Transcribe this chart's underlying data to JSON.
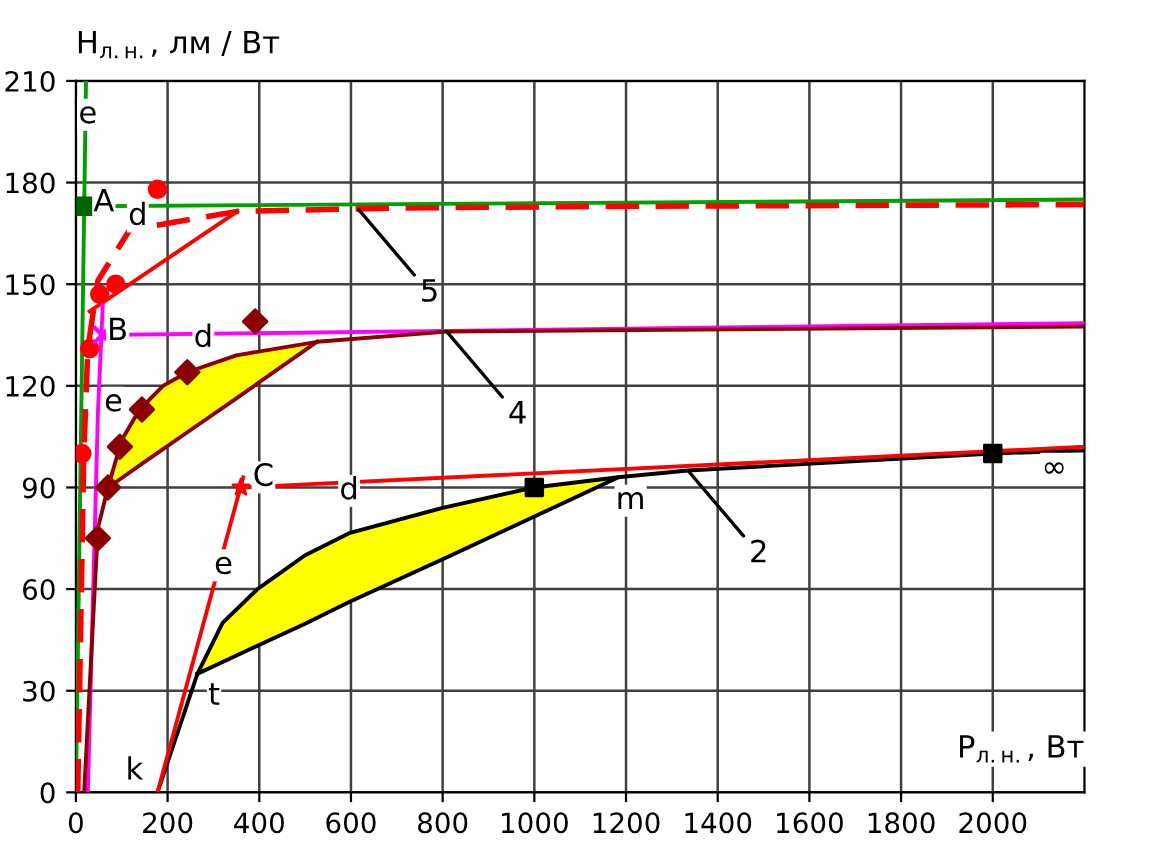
{
  "chart_data": {
    "type": "line",
    "xlabel": "P$_{л.н.}$, Вт",
    "ylabel": "H$_{л.н.}$, лм / Вт",
    "xlim": [
      0,
      2200
    ],
    "ylim": [
      0,
      210
    ],
    "xticks": [
      0,
      200,
      400,
      600,
      800,
      1000,
      1200,
      1400,
      1600,
      1800,
      2000
    ],
    "yticks": [
      0,
      30,
      60,
      90,
      120,
      150,
      180,
      210
    ],
    "grid": true,
    "legend": false,
    "series": [
      {
        "color": "#00a000",
        "x": [
          0,
          22
        ],
        "values": [
          0,
          210
        ],
        "line_style": "solid"
      },
      {
        "color": "#00a000",
        "x": [
          22,
          2200
        ],
        "values": [
          173,
          175
        ],
        "line_style": "solid"
      },
      {
        "color": "#ff0000",
        "x": [
          4,
          17,
          26,
          48,
          117,
          352,
          700,
          1200,
          2200
        ],
        "values": [
          0,
          99,
          131,
          151,
          166,
          171.5,
          172.5,
          173,
          173.5
        ],
        "line_style": "dashed"
      },
      {
        "color": "#ff0000",
        "x": [
          30,
          352
        ],
        "values": [
          142,
          171.5
        ],
        "line_style": "solid"
      },
      {
        "type": "scatter",
        "color": "#ff0000",
        "x": [
          13,
          30,
          52,
          87,
          178
        ],
        "values": [
          100,
          131,
          147,
          150,
          178
        ],
        "marker": "circle"
      },
      {
        "color": "#ff00ff",
        "x": [
          26,
          48,
          59
        ],
        "values": [
          0,
          112,
          145
        ],
        "line_style": "solid"
      },
      {
        "color": "#ff00ff",
        "x": [
          57,
          2200
        ],
        "values": [
          135,
          138.5
        ],
        "line_style": "solid"
      },
      {
        "color": "#8b0000",
        "x": [
          18,
          48,
          70,
          100,
          139,
          190,
          243,
          350,
          526,
          809,
          2200
        ],
        "values": [
          0,
          78,
          90,
          104,
          113,
          120,
          124,
          129,
          133,
          136,
          137.5
        ],
        "line_style": "solid"
      },
      {
        "color": "#8b0000",
        "x": [
          70,
          100,
          139,
          190,
          243,
          350,
          526
        ],
        "values": [
          90,
          92.8,
          96.5,
          101.3,
          106.3,
          116.3,
          133
        ],
        "lower": [
          90,
          92.8,
          96.5,
          101.3,
          106.3,
          116.3,
          133
        ],
        "upper": [
          90,
          104,
          113,
          120,
          124,
          129,
          133
        ],
        "line_style": "solid"
      },
      {
        "type": "scatter",
        "color": "#8b0000",
        "x": [
          48,
          70,
          96,
          144,
          243,
          391
        ],
        "values": [
          75,
          90,
          102,
          113,
          124,
          139
        ],
        "marker": "diamond"
      },
      {
        "color": "#000000",
        "x": [
          178,
          265,
          320,
          396,
          500,
          596,
          800,
          1000,
          1183,
          1335,
          2000,
          2200
        ],
        "values": [
          0,
          35,
          50,
          60,
          70,
          76.5,
          84,
          90,
          93,
          95,
          100,
          101
        ],
        "line_style": "solid"
      },
      {
        "color": "#000000",
        "x": [
          265,
          320,
          396,
          500,
          596,
          800,
          1000,
          1183
        ],
        "values": [
          35,
          38.5,
          43.3,
          49.8,
          56.2,
          68.8,
          81.4,
          93
        ],
        "lower": [
          35,
          38.5,
          43.3,
          49.8,
          56.2,
          68.8,
          81.4,
          93
        ],
        "upper": [
          35,
          50,
          60,
          70,
          76.5,
          84,
          90,
          93
        ],
        "line_style": "solid"
      },
      {
        "type": "scatter",
        "color": "#000000",
        "x": [
          1000,
          2000
        ],
        "values": [
          90,
          100
        ],
        "marker": "square"
      },
      {
        "color": "#ff0000",
        "x": [
          178,
          365
        ],
        "values": [
          0,
          93
        ],
        "line_style": "solid"
      },
      {
        "color": "#ff0000",
        "x": [
          360,
          2200
        ],
        "values": [
          90,
          102
        ],
        "line_style": "solid"
      },
      {
        "type": "scatter",
        "color": "#006400",
        "x": [
          22
        ],
        "values": [
          173
        ],
        "marker": "square"
      },
      {
        "type": "scatter",
        "color": "#ff00ff",
        "x": [
          57
        ],
        "values": [
          135
        ],
        "marker": "cross"
      },
      {
        "type": "scatter",
        "color": "#ff0000",
        "x": [
          360
        ],
        "values": [
          90
        ],
        "marker": "star"
      }
    ],
    "annotations": [
      {
        "text": "e",
        "x": 26,
        "y": 200
      },
      {
        "text": "A",
        "x": 61,
        "y": 174
      },
      {
        "text": "d",
        "x": 135,
        "y": 170
      },
      {
        "text": "B",
        "x": 91,
        "y": 136
      },
      {
        "text": "d",
        "x": 278,
        "y": 134
      },
      {
        "text": "e",
        "x": 82,
        "y": 115
      },
      {
        "text": "C",
        "x": 409,
        "y": 93
      },
      {
        "text": "d",
        "x": 596,
        "y": 89
      },
      {
        "text": "e",
        "x": 322,
        "y": 67
      },
      "t",
      "k",
      "m",
      "∞",
      {
        "text": "5",
        "x": 617,
        "y": 172
      },
      {
        "text": "4",
        "x": 809,
        "y": 136
      },
      {
        "text": "2",
        "x": 1335,
        "y": 95
      }
    ]
  }
}
